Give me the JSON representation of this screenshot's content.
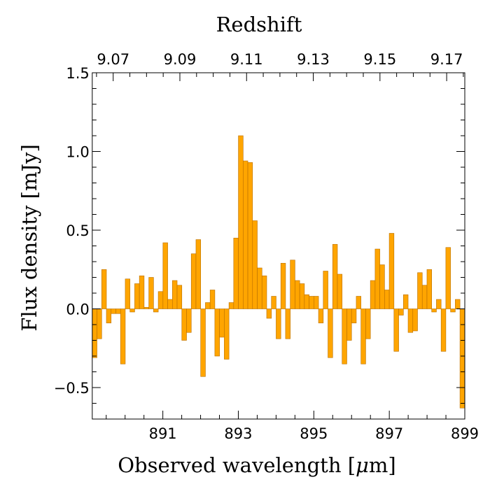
{
  "chart_data": {
    "type": "bar",
    "style": "histogram-step",
    "title": "",
    "top_axis_label": "Redshift",
    "xlabel": "Observed wavelength [",
    "xlabel_unit_symbol": "μ",
    "xlabel_unit_rest": "m]",
    "ylabel": "Flux density [mJy]",
    "xlim": [
      889.13,
      899.0
    ],
    "ylim": [
      -0.7,
      1.5
    ],
    "x_ticks": [
      891,
      893,
      895,
      897,
      899
    ],
    "x_minor_step": 0.5,
    "y_ticks": [
      -0.5,
      0.0,
      0.5,
      1.0,
      1.5
    ],
    "y_tick_labels": [
      "−0.5",
      "0.0",
      "0.5",
      "1.0",
      "1.5"
    ],
    "y_minor_step": 0.1,
    "top_ticks": [
      9.07,
      9.09,
      9.11,
      9.13,
      9.15,
      9.17
    ],
    "top_tick_labels": [
      "9.07",
      "9.09",
      "9.11",
      "9.13",
      "9.15",
      "9.17"
    ],
    "top_minor_step": 0.005,
    "rest_wavelength_um": 88.35,
    "bin_start": 889.13,
    "bin_width": 0.1249,
    "values": [
      -0.31,
      -0.19,
      0.25,
      -0.09,
      -0.03,
      -0.03,
      -0.35,
      0.19,
      -0.02,
      0.16,
      0.21,
      0.01,
      0.2,
      -0.02,
      0.11,
      0.42,
      0.06,
      0.18,
      0.15,
      -0.2,
      -0.15,
      0.35,
      0.44,
      -0.43,
      0.04,
      0.12,
      -0.3,
      -0.18,
      -0.32,
      0.04,
      0.45,
      1.1,
      0.94,
      0.93,
      0.56,
      0.26,
      0.21,
      -0.06,
      0.08,
      -0.19,
      0.29,
      -0.19,
      0.31,
      0.18,
      0.16,
      0.09,
      0.08,
      0.08,
      -0.09,
      0.24,
      -0.31,
      0.41,
      0.22,
      -0.35,
      -0.2,
      -0.09,
      0.08,
      -0.35,
      -0.19,
      0.18,
      0.38,
      0.28,
      0.12,
      0.48,
      -0.27,
      -0.04,
      0.09,
      -0.15,
      -0.14,
      0.23,
      0.15,
      0.25,
      -0.02,
      0.06,
      -0.27,
      0.39,
      -0.02,
      0.06,
      -0.63
    ],
    "bar_color": "#FFA500",
    "bar_edge_color": "#B86E00",
    "grid": false
  }
}
